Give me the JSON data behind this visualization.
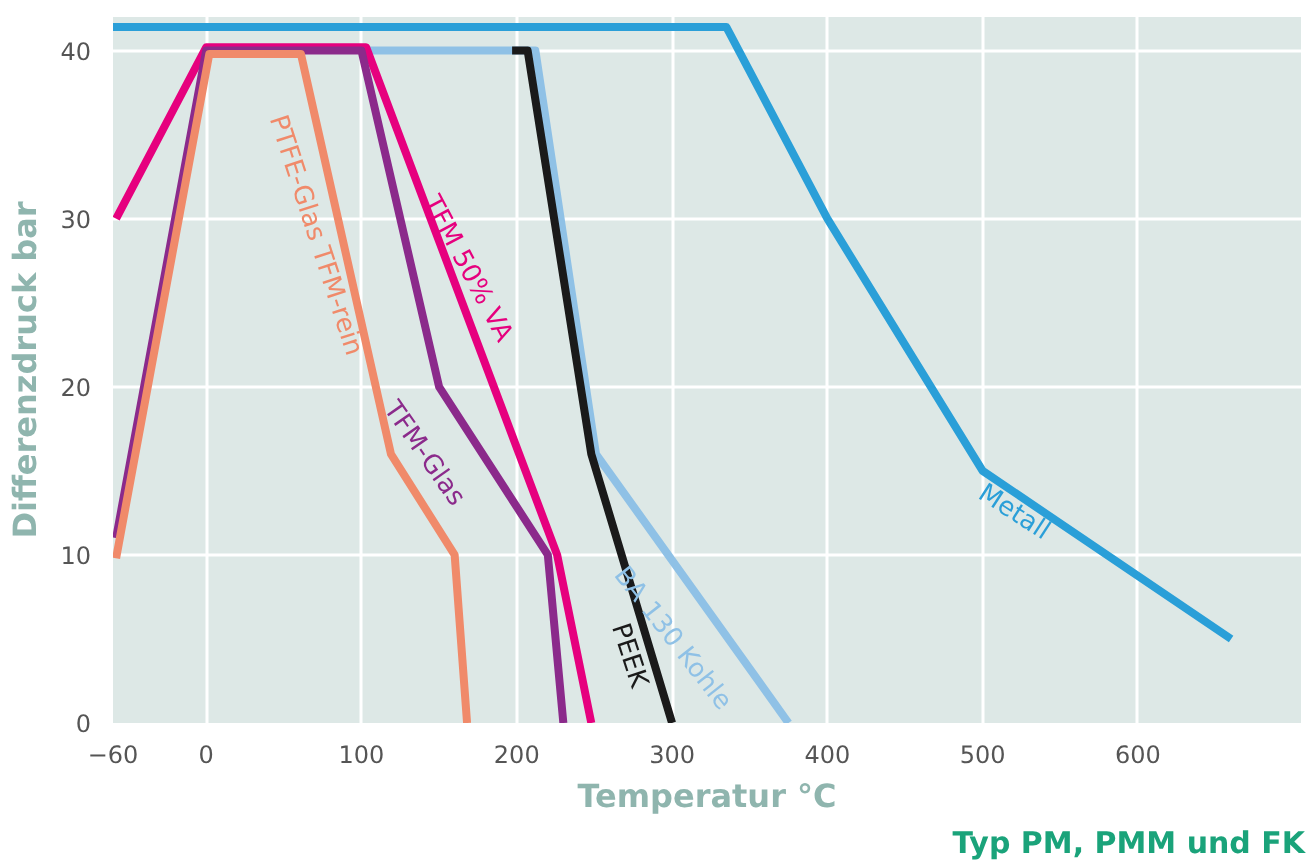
{
  "chart_data": {
    "type": "line",
    "xlabel": "Temperatur °C",
    "ylabel": "Differenzdruck bar",
    "xlim": [
      -60,
      705
    ],
    "ylim": [
      0,
      42
    ],
    "xticks": [
      -60,
      0,
      100,
      200,
      300,
      400,
      500,
      600
    ],
    "yticks": [
      0,
      10,
      20,
      30,
      40
    ],
    "grid": true,
    "legend": false,
    "marker": "none",
    "line_style": "solid",
    "annotations": [
      "Typ PM, PMM und FK"
    ],
    "series": [
      {
        "name": "Metall",
        "color": "#2a9fd8",
        "x": [
          -60,
          335,
          400,
          500,
          660
        ],
        "values": [
          41.4,
          41.4,
          30,
          15,
          5
        ]
      },
      {
        "name": "BA 130 Kohle",
        "color": "#8fc1e6",
        "x": [
          100,
          212,
          251,
          375
        ],
        "values": [
          40,
          40,
          16,
          0
        ]
      },
      {
        "name": "PEEK",
        "color": "#1a1a1a",
        "x": [
          197,
          207,
          248,
          300
        ],
        "values": [
          40,
          40,
          16,
          0
        ]
      },
      {
        "name": "TFM 50% VA",
        "color": "#e6007e",
        "x": [
          -58,
          0,
          103,
          226,
          248
        ],
        "values": [
          30,
          40.2,
          40.2,
          10,
          0
        ]
      },
      {
        "name": "TFM-Glas",
        "color": "#8b2a8b",
        "x": [
          -58,
          0,
          100,
          150,
          220,
          230
        ],
        "values": [
          11,
          40,
          40,
          20,
          10,
          0
        ]
      },
      {
        "name": "PTFE-Glas TFM-rein",
        "color": "#f08a6a",
        "x": [
          -58,
          2,
          61,
          119,
          160,
          168
        ],
        "values": [
          9.8,
          39.8,
          39.8,
          16,
          10,
          0
        ]
      }
    ]
  }
}
